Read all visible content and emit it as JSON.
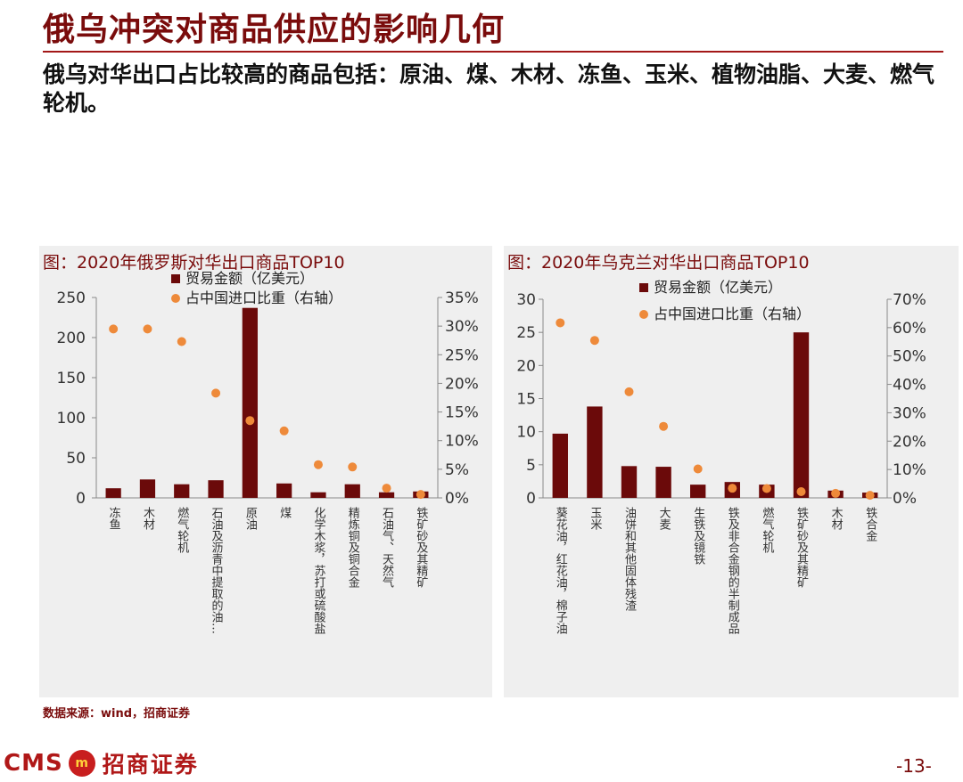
{
  "page": {
    "title": "俄乌冲突对商品供应的影响几何",
    "subtitle": "俄乌对华出口占比较高的商品包括：原油、煤、木材、冻鱼、玉米、植物油脂、大麦、燃气轮机。",
    "source": "数据来源：wind，招商证券",
    "page_number": "-13-",
    "logo_text": "CMS",
    "logo_emblem": "m",
    "logo_name": "招商证券"
  },
  "colors": {
    "accent": "#7a0c0c",
    "bar": "#6b0a0a",
    "dot": "#ee8a3a",
    "panel": "#efefef"
  },
  "chart_data": [
    {
      "type": "bar",
      "title": "图：2020年俄罗斯对华出口商品TOP10",
      "categories": [
        "冻鱼",
        "木材",
        "燃气轮机",
        "石油及沥青中提取的油…",
        "原油",
        "煤",
        "化学木浆，苏打或硫酸盐",
        "精炼铜及铜合金",
        "石油气、天然气",
        "铁矿砂及其精矿"
      ],
      "series": [
        {
          "name": "贸易金额（亿美元）",
          "axis": "left",
          "values": [
            12,
            23,
            17,
            22,
            237,
            18,
            7,
            17,
            7,
            8
          ]
        },
        {
          "name": "占中国进口比重（右轴）",
          "axis": "right",
          "values": [
            29.5,
            29.5,
            27.3,
            18.3,
            13.5,
            11.7,
            5.8,
            5.4,
            1.7,
            0.6
          ]
        }
      ],
      "ylim_left": [
        0,
        250
      ],
      "yticks_left": [
        "0",
        "50",
        "100",
        "150",
        "200",
        "250"
      ],
      "ylim_right": [
        0,
        35
      ],
      "yticks_right": [
        "0%",
        "5%",
        "10%",
        "15%",
        "20%",
        "25%",
        "30%",
        "35%"
      ],
      "legend": "top"
    },
    {
      "type": "bar",
      "title": "图：2020年乌克兰对华出口商品TOP10",
      "categories": [
        "葵花油，红花油，棉子油",
        "玉米",
        "油饼和其他固体残渣",
        "大麦",
        "生铁及镜铁",
        "铁及非合金钢的半制成品",
        "燃气轮机",
        "铁矿砂及其精矿",
        "木材",
        "铁合金"
      ],
      "series": [
        {
          "name": "贸易金额（亿美元）",
          "axis": "left",
          "values": [
            9.7,
            13.8,
            4.8,
            4.7,
            2.0,
            2.4,
            2.0,
            25.0,
            1.1,
            0.8
          ]
        },
        {
          "name": "占中国进口比重（右轴）",
          "axis": "right",
          "values": [
            61.7,
            55.5,
            37.4,
            25.2,
            10.2,
            3.4,
            3.3,
            2.2,
            1.6,
            0.9
          ]
        }
      ],
      "ylim_left": [
        0,
        30
      ],
      "yticks_left": [
        "0",
        "5",
        "10",
        "15",
        "20",
        "25",
        "30"
      ],
      "ylim_right": [
        0,
        70
      ],
      "yticks_right": [
        "0%",
        "10%",
        "20%",
        "30%",
        "40%",
        "50%",
        "60%",
        "70%"
      ],
      "legend": "top"
    }
  ]
}
